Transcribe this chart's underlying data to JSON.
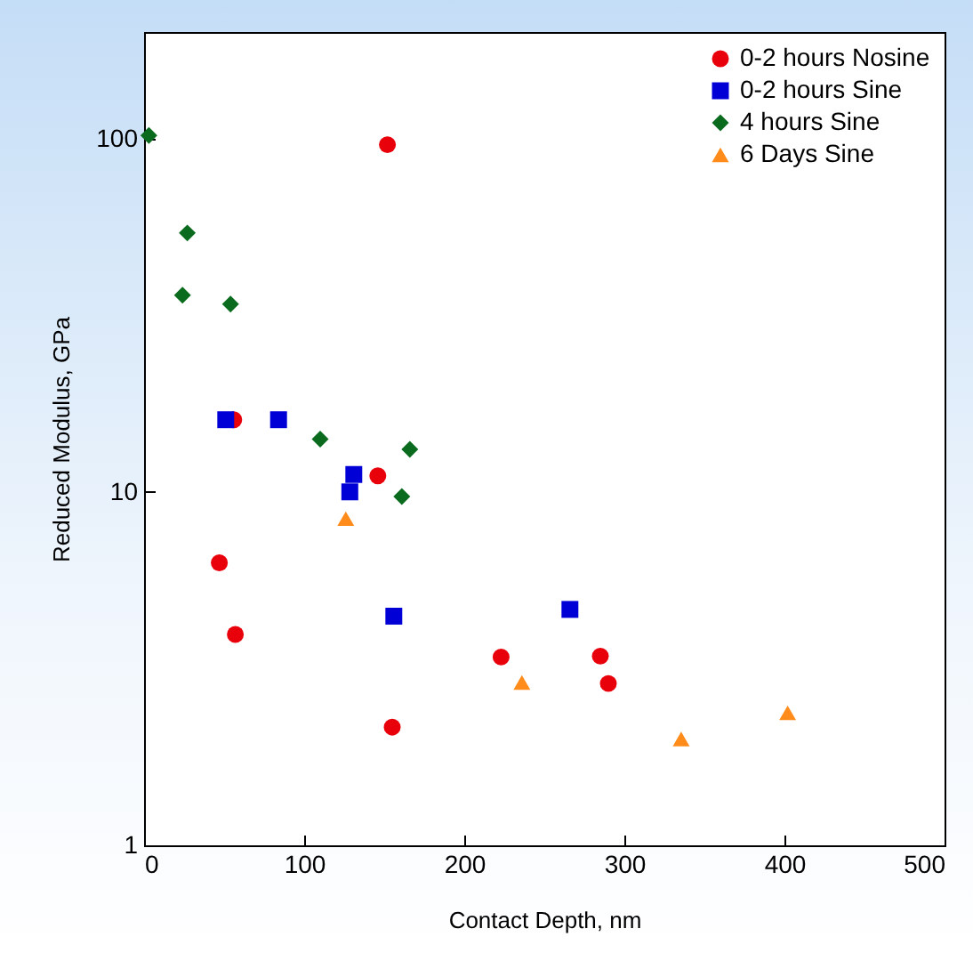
{
  "chart_data": {
    "type": "scatter",
    "xlabel": "Contact Depth, nm",
    "ylabel": "Reduced Modulus, GPa",
    "log": "y",
    "legend": "top right",
    "xlim": [
      0,
      500
    ],
    "xticks": [
      0,
      100,
      200,
      300,
      400,
      500
    ],
    "ylim": [
      1,
      200
    ],
    "yticks": [
      1,
      10,
      100
    ],
    "series": [
      {
        "name": "0-2 hours Nosine",
        "color": "#e8000b",
        "marker": "circle",
        "x": [
          152,
          56,
          146,
          47,
          57,
          155,
          223,
          285,
          290
        ],
        "values": [
          96,
          16,
          11.1,
          6.3,
          3.95,
          2.16,
          3.41,
          3.43,
          2.87
        ]
      },
      {
        "name": "0-2 hours Sine",
        "color": "#0000d6",
        "marker": "square",
        "x": [
          51,
          84,
          131,
          128.5,
          156,
          266
        ],
        "values": [
          16,
          16,
          11.2,
          10,
          4.45,
          4.65
        ]
      },
      {
        "name": "4 hours Sine",
        "color": "#0a6b1e",
        "marker": "diamond",
        "x": [
          3,
          27,
          24,
          54,
          110,
          166,
          161
        ],
        "values": [
          102,
          54,
          36,
          34,
          14.1,
          13.2,
          9.7
        ]
      },
      {
        "name": "6 Days Sine",
        "color": "#ff8c1a",
        "marker": "triangle",
        "x": [
          126,
          236,
          335.5,
          402
        ],
        "values": [
          8.4,
          2.89,
          2.0,
          2.37
        ]
      }
    ]
  }
}
